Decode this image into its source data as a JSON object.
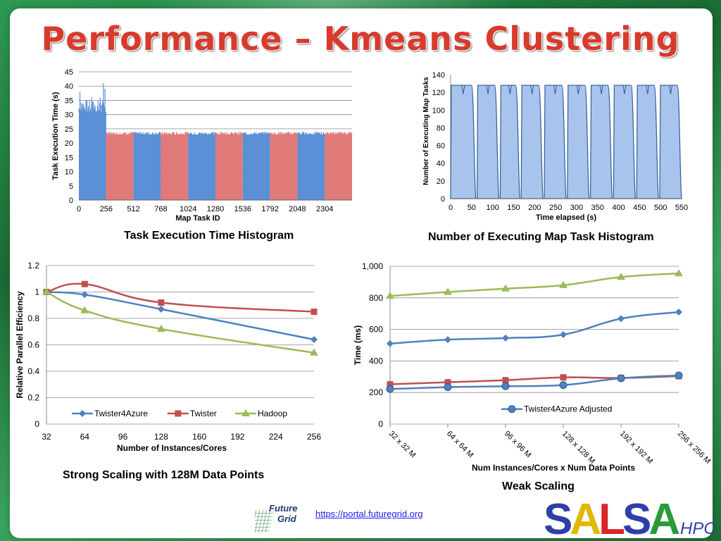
{
  "slide_title": "Performance – Kmeans Clustering",
  "captions": {
    "histogram": "Task Execution Time Histogram",
    "executing": "Number of Executing Map Task Histogram",
    "strong": "Strong Scaling with 128M Data Points",
    "weak": "Weak Scaling"
  },
  "link_text": "https://portal.futuregrid.org",
  "logos": {
    "futuregrid": [
      "Future",
      "Grid"
    ],
    "salsa": "SALSA",
    "salsa_suffix": "HPC"
  },
  "colors": {
    "blue": "#4f81bd",
    "red": "#c0504d",
    "green": "#9bbb59",
    "hist_blue": "#5b8fd6",
    "hist_red": "#e07a78",
    "area_fill": "#a8c4ec",
    "title": "#d83a2c"
  },
  "chart_data": [
    {
      "type": "bar",
      "xlabel": "Map Task ID",
      "ylabel": "Task Execution Time (s)",
      "xlim": [
        0,
        2560
      ],
      "ylim": [
        0,
        45
      ],
      "xticks": [
        0,
        256,
        512,
        768,
        1024,
        1280,
        1536,
        1792,
        2048,
        2304
      ],
      "yticks": [
        0,
        5,
        10,
        15,
        20,
        25,
        30,
        35,
        40,
        45
      ],
      "segments": [
        {
          "from": 0,
          "to": 256,
          "value": 31,
          "color": "blue"
        },
        {
          "from": 256,
          "to": 512,
          "value": 23,
          "color": "red"
        },
        {
          "from": 512,
          "to": 768,
          "value": 23,
          "color": "blue"
        },
        {
          "from": 768,
          "to": 1024,
          "value": 23,
          "color": "red"
        },
        {
          "from": 1024,
          "to": 1280,
          "value": 23,
          "color": "blue"
        },
        {
          "from": 1280,
          "to": 1536,
          "value": 23,
          "color": "red"
        },
        {
          "from": 1536,
          "to": 1792,
          "value": 23,
          "color": "blue"
        },
        {
          "from": 1792,
          "to": 2048,
          "value": 23,
          "color": "red"
        },
        {
          "from": 2048,
          "to": 2304,
          "value": 23,
          "color": "blue"
        },
        {
          "from": 2304,
          "to": 2560,
          "value": 23,
          "color": "red"
        }
      ]
    },
    {
      "type": "area",
      "xlabel": "Time elapsed (s)",
      "ylabel": "Number of Executing Map Tasks",
      "xlim": [
        0,
        550
      ],
      "ylim": [
        0,
        140
      ],
      "xticks": [
        0,
        50,
        100,
        150,
        200,
        250,
        300,
        350,
        400,
        450,
        500,
        550
      ],
      "yticks": [
        0,
        20,
        40,
        60,
        80,
        100,
        120,
        140
      ],
      "plateau": 128,
      "iterations": [
        [
          0,
          60
        ],
        [
          63,
          115
        ],
        [
          118,
          165
        ],
        [
          168,
          220
        ],
        [
          223,
          275
        ],
        [
          278,
          330
        ],
        [
          333,
          385
        ],
        [
          388,
          440
        ],
        [
          443,
          495
        ],
        [
          498,
          550
        ]
      ]
    },
    {
      "type": "line",
      "xlabel": "Number of Instances/Cores",
      "ylabel": "Relative Parallel Efficiency",
      "xlim": [
        32,
        256
      ],
      "ylim": [
        0,
        1.2
      ],
      "xticks": [
        32,
        64,
        96,
        128,
        160,
        192,
        224,
        256
      ],
      "yticks": [
        0,
        0.2,
        0.4,
        0.6,
        0.8,
        1,
        1.2
      ],
      "x": [
        32,
        64,
        128,
        256
      ],
      "series": [
        {
          "name": "Twister4Azure",
          "values": [
            1,
            0.98,
            0.87,
            0.64
          ],
          "color": "blue",
          "marker": "diamond"
        },
        {
          "name": "Twister",
          "values": [
            1,
            1.06,
            0.92,
            0.85
          ],
          "color": "red",
          "marker": "square"
        },
        {
          "name": "Hadoop",
          "values": [
            1,
            0.86,
            0.72,
            0.54
          ],
          "color": "green",
          "marker": "triangle"
        }
      ],
      "legend": "bottom"
    },
    {
      "type": "line",
      "xlabel": "Num  Instances/Cores x Num Data Points",
      "ylabel": "Time (ms)",
      "ylim": [
        0,
        1000
      ],
      "yticks": [
        "0",
        "200",
        "400",
        "600",
        "800",
        "1,000"
      ],
      "categories": [
        "32 x 32 M",
        "64 x 64 M",
        "96 x 96 M",
        "128 x 128 M",
        "192 x 192 M",
        "256 x 256 M"
      ],
      "series": [
        {
          "values": [
            812,
            837,
            858,
            880,
            932,
            955
          ],
          "color": "green",
          "marker": "triangle"
        },
        {
          "values": [
            510,
            535,
            545,
            567,
            668,
            710
          ],
          "color": "blue",
          "marker": "diamond"
        },
        {
          "values": [
            252,
            265,
            278,
            296,
            292,
            304
          ],
          "color": "red",
          "marker": "square"
        },
        {
          "name": "Twister4Azure Adjusted",
          "values": [
            222,
            234,
            240,
            247,
            290,
            308
          ],
          "color": "blue",
          "marker": "circle"
        }
      ],
      "legend": "bottom-right"
    }
  ]
}
